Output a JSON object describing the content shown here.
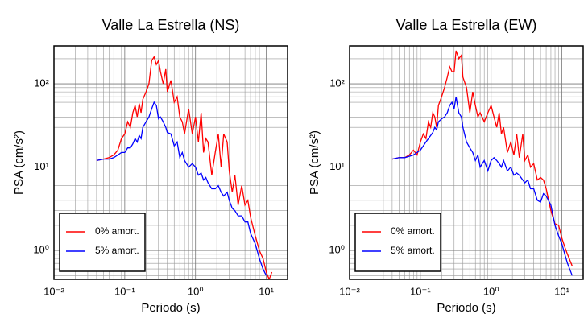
{
  "chart_data": [
    {
      "type": "line",
      "title": "Valle La Estrella (NS)",
      "x_label": "Periodo (s)",
      "y_label": "PSA (cm/s²)",
      "log_x": true,
      "log_y": true,
      "grid": true,
      "legend": "lower left",
      "xlim": [
        0.01,
        20
      ],
      "ylim": [
        0.45,
        285
      ],
      "xticks": [
        {
          "value": 0.01,
          "label": "10⁻²"
        },
        {
          "value": 0.1,
          "label": "10⁻¹"
        },
        {
          "value": 1,
          "label": "10⁰"
        },
        {
          "value": 10,
          "label": "10¹"
        }
      ],
      "yticks": [
        {
          "value": 1,
          "label": "10⁰"
        },
        {
          "value": 10,
          "label": "10¹"
        },
        {
          "value": 100,
          "label": "10²"
        }
      ],
      "xminorticks": [
        0.02,
        0.03,
        0.04,
        0.05,
        0.06,
        0.07,
        0.08,
        0.09,
        0.2,
        0.3,
        0.4,
        0.5,
        0.6,
        0.7,
        0.8,
        0.9,
        2,
        3,
        4,
        5,
        6,
        7,
        8,
        9,
        20
      ],
      "yminorticks": [
        0.5,
        0.6,
        0.7,
        0.8,
        0.9,
        2,
        3,
        4,
        5,
        6,
        7,
        8,
        9,
        20,
        30,
        40,
        50,
        60,
        70,
        80,
        90,
        200
      ],
      "x": [
        0.04,
        0.05,
        0.06,
        0.07,
        0.08,
        0.09,
        0.1,
        0.11,
        0.12,
        0.13,
        0.14,
        0.15,
        0.16,
        0.17,
        0.18,
        0.2,
        0.22,
        0.24,
        0.26,
        0.28,
        0.3,
        0.32,
        0.35,
        0.38,
        0.4,
        0.45,
        0.5,
        0.55,
        0.6,
        0.65,
        0.7,
        0.8,
        0.9,
        1.0,
        1.1,
        1.2,
        1.3,
        1.4,
        1.5,
        1.7,
        1.9,
        2.1,
        2.3,
        2.5,
        2.8,
        3.0,
        3.3,
        3.6,
        4.0,
        4.5,
        5.0,
        5.5,
        6.0,
        7.0,
        8.0,
        9.0,
        10,
        11,
        12
      ],
      "series": [
        {
          "name": "0% amort.",
          "color": "#ff0000",
          "values": [
            12,
            12.5,
            13,
            14,
            16,
            22,
            25,
            35,
            30,
            45,
            55,
            40,
            58,
            45,
            65,
            80,
            100,
            190,
            210,
            170,
            190,
            140,
            100,
            150,
            80,
            110,
            60,
            70,
            40,
            35,
            25,
            50,
            25,
            40,
            20,
            45,
            15,
            22,
            20,
            8,
            15,
            25,
            10,
            25,
            20,
            9,
            5,
            8,
            3.5,
            6,
            3.5,
            4,
            2.5,
            1.5,
            1.0,
            0.8,
            0.55,
            0.45,
            0.55
          ]
        },
        {
          "name": "5% amort.",
          "color": "#0000ff",
          "values": [
            12,
            12.5,
            12.5,
            13,
            14,
            15,
            15,
            17,
            17,
            19,
            22,
            20,
            24,
            22,
            30,
            35,
            40,
            50,
            60,
            55,
            38,
            40,
            35,
            30,
            26,
            25,
            18,
            20,
            13,
            15,
            12,
            10,
            11,
            10,
            8,
            8.5,
            7,
            7.5,
            6.5,
            5.5,
            5.5,
            6,
            5,
            4.5,
            5,
            4,
            3.2,
            3,
            2.6,
            2.6,
            2.2,
            2.2,
            1.6,
            1.2,
            0.8,
            0.6,
            0.5,
            null,
            null
          ]
        }
      ]
    },
    {
      "type": "line",
      "title": "Valle La Estrella (EW)",
      "x_label": "Periodo (s)",
      "y_label": "PSA (cm/s²)",
      "log_x": true,
      "log_y": true,
      "grid": true,
      "legend": "lower left",
      "xlim": [
        0.01,
        20
      ],
      "ylim": [
        0.45,
        285
      ],
      "xticks": [
        {
          "value": 0.01,
          "label": "10⁻²"
        },
        {
          "value": 0.1,
          "label": "10⁻¹"
        },
        {
          "value": 1,
          "label": "10⁰"
        },
        {
          "value": 10,
          "label": "10¹"
        }
      ],
      "yticks": [
        {
          "value": 1,
          "label": "10⁰"
        },
        {
          "value": 10,
          "label": "10¹"
        },
        {
          "value": 100,
          "label": "10²"
        }
      ],
      "xminorticks": [
        0.02,
        0.03,
        0.04,
        0.05,
        0.06,
        0.07,
        0.08,
        0.09,
        0.2,
        0.3,
        0.4,
        0.5,
        0.6,
        0.7,
        0.8,
        0.9,
        2,
        3,
        4,
        5,
        6,
        7,
        8,
        9,
        20
      ],
      "yminorticks": [
        0.5,
        0.6,
        0.7,
        0.8,
        0.9,
        2,
        3,
        4,
        5,
        6,
        7,
        8,
        9,
        20,
        30,
        40,
        50,
        60,
        70,
        80,
        90,
        200
      ],
      "x": [
        0.04,
        0.05,
        0.06,
        0.07,
        0.08,
        0.09,
        0.1,
        0.11,
        0.12,
        0.13,
        0.14,
        0.15,
        0.16,
        0.17,
        0.18,
        0.2,
        0.22,
        0.24,
        0.26,
        0.28,
        0.3,
        0.32,
        0.35,
        0.38,
        0.4,
        0.45,
        0.5,
        0.55,
        0.6,
        0.65,
        0.7,
        0.8,
        0.9,
        1.0,
        1.1,
        1.2,
        1.3,
        1.4,
        1.5,
        1.7,
        1.9,
        2.1,
        2.3,
        2.5,
        2.8,
        3.0,
        3.3,
        3.6,
        4.0,
        4.5,
        5.0,
        5.5,
        6.0,
        7.0,
        8.0,
        9.0,
        10,
        11,
        12,
        14
      ],
      "series": [
        {
          "name": "0% amort.",
          "color": "#ff0000",
          "values": [
            12.5,
            13,
            13,
            14,
            16,
            14,
            20,
            25,
            22,
            35,
            30,
            45,
            40,
            30,
            55,
            70,
            90,
            120,
            160,
            140,
            140,
            250,
            200,
            220,
            120,
            90,
            45,
            80,
            55,
            40,
            45,
            35,
            45,
            55,
            40,
            30,
            45,
            25,
            30,
            15,
            20,
            14,
            25,
            13,
            25,
            12,
            14,
            10,
            11,
            7,
            7.5,
            7,
            5.5,
            3,
            2.1,
            2.0,
            1.4,
            1.1,
            0.9,
            0.65
          ]
        },
        {
          "name": "5% amort.",
          "color": "#0000ff",
          "values": [
            12.5,
            13,
            13,
            13.5,
            14,
            15,
            16,
            18,
            20,
            22,
            24,
            26,
            30,
            28,
            35,
            38,
            40,
            45,
            55,
            60,
            50,
            70,
            45,
            40,
            30,
            20,
            17,
            15,
            12,
            14,
            10,
            12,
            9,
            12,
            13,
            12,
            11,
            10,
            12,
            9,
            10,
            8,
            8.5,
            8,
            7,
            6.5,
            7,
            5.5,
            5.5,
            4,
            3.8,
            4.8,
            4.5,
            3.5,
            2,
            1.5,
            1.2,
            0.9,
            0.7,
            0.5
          ]
        }
      ]
    }
  ]
}
